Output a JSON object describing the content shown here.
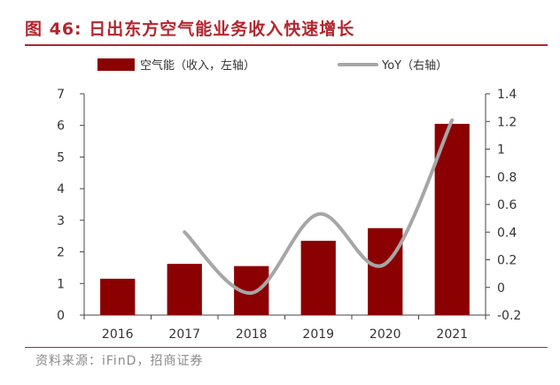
{
  "figure": {
    "title": "图 46: 日出东方空气能业务收入快速增长",
    "source": "资料来源：iFinD，招商证券"
  },
  "colors": {
    "title": "#b3262e",
    "bar": "#8b0000",
    "line": "#a6a6a6",
    "axis_text": "#333333",
    "source_text": "#8a8a8a"
  },
  "chart_data": {
    "type": "bar",
    "categories": [
      "2016",
      "2017",
      "2018",
      "2019",
      "2020",
      "2021"
    ],
    "series": [
      {
        "name": "空气能（收入，左轴）",
        "type": "bar",
        "axis": "left",
        "values": [
          1.15,
          1.62,
          1.55,
          2.35,
          2.75,
          6.05
        ]
      },
      {
        "name": "YoY（右轴）",
        "type": "line",
        "axis": "right",
        "smooth": true,
        "values": [
          null,
          0.4,
          -0.04,
          0.53,
          0.17,
          1.21
        ]
      }
    ],
    "yleft": {
      "min": 0,
      "max": 7,
      "ticks": [
        "0",
        "1",
        "2",
        "3",
        "4",
        "5",
        "6",
        "7"
      ]
    },
    "yright": {
      "min": -0.2,
      "max": 1.4,
      "ticks": [
        "-0.2",
        "0",
        "0.2",
        "0.4",
        "0.6",
        "0.8",
        "1",
        "1.2",
        "1.4"
      ]
    },
    "legend_position": "top",
    "grid": false
  }
}
